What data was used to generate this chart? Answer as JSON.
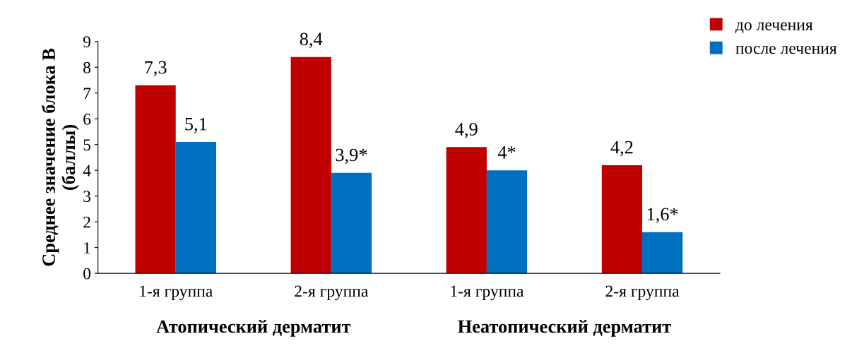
{
  "chart_data": {
    "type": "bar",
    "ylabel": "Среднее значение блока В\n(баллы)",
    "categories": [
      "1-я группа",
      "2-я группа",
      "1-я группа",
      "2-я группа"
    ],
    "series": [
      {
        "name": "до лечения",
        "color": "#c00000",
        "values": [
          7.3,
          8.4,
          4.9,
          4.2
        ],
        "value_labels": [
          "7,3",
          "8,4",
          "4,9",
          "4,2"
        ]
      },
      {
        "name": "после лечения",
        "color": "#0070c0",
        "values": [
          5.1,
          3.9,
          4,
          1.6
        ],
        "value_labels": [
          "5,1",
          "3,9*",
          "4*",
          "1,6*"
        ]
      }
    ],
    "ylim": [
      0,
      9
    ],
    "yticks": [
      0,
      1,
      2,
      3,
      4,
      5,
      6,
      7,
      8,
      9
    ],
    "grid": false,
    "legend": "top right",
    "annotations": [
      "Атопический дерматит",
      "Неатопический дерматит"
    ]
  }
}
